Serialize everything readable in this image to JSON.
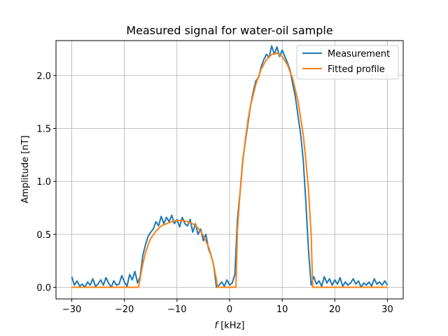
{
  "chart_data": {
    "type": "line",
    "title": "Measured signal for water-oil sample",
    "xlabel_italic": "f",
    "xlabel_rest": " [kHz]",
    "ylabel": "Amplitude [nT]",
    "xlim": [
      -33,
      33
    ],
    "ylim": [
      -0.11,
      2.33
    ],
    "xticks": [
      -30,
      -20,
      -10,
      0,
      10,
      20,
      30
    ],
    "xtick_labels": [
      "−30",
      "−20",
      "−10",
      "0",
      "10",
      "20",
      "30"
    ],
    "yticks": [
      0.0,
      0.5,
      1.0,
      1.5,
      2.0
    ],
    "ytick_labels": [
      "0.0",
      "0.5",
      "1.0",
      "1.5",
      "2.0"
    ],
    "grid": true,
    "legend_position": "top-right",
    "colors": {
      "measurement": "#1f77b4",
      "fitted": "#ff7f0e"
    },
    "series": [
      {
        "name": "Measurement",
        "x": [
          -30,
          -29.5,
          -29,
          -28.5,
          -28,
          -27.5,
          -27,
          -26.5,
          -26,
          -25.5,
          -25,
          -24.5,
          -24,
          -23.5,
          -23,
          -22.5,
          -22,
          -21.5,
          -21,
          -20.5,
          -20,
          -19.5,
          -19,
          -18.5,
          -18,
          -17.5,
          -17,
          -16.5,
          -16,
          -15.5,
          -15,
          -14.5,
          -14,
          -13.5,
          -13,
          -12.5,
          -12,
          -11.5,
          -11,
          -10.5,
          -10,
          -9.5,
          -9,
          -8.5,
          -8,
          -7.5,
          -7,
          -6.5,
          -6,
          -5.5,
          -5,
          -4.5,
          -4,
          -3.5,
          -3,
          -2.5,
          -2,
          -1.5,
          -1,
          -0.5,
          0,
          0.5,
          1,
          1.5,
          2,
          2.5,
          3,
          3.5,
          4,
          4.5,
          5,
          5.5,
          6,
          6.5,
          7,
          7.5,
          8,
          8.5,
          9,
          9.5,
          10,
          10.5,
          11,
          11.5,
          12,
          12.5,
          13,
          13.5,
          14,
          14.5,
          15,
          15.5,
          16,
          16.5,
          17,
          17.5,
          18,
          18.5,
          19,
          19.5,
          20,
          20.5,
          21,
          21.5,
          22,
          22.5,
          23,
          23.5,
          24,
          24.5,
          25,
          25.5,
          26,
          26.5,
          27,
          27.5,
          28,
          28.5,
          29,
          29.5,
          30
        ],
        "y": [
          0.1,
          0.02,
          0.06,
          0.01,
          0.03,
          0.0,
          0.05,
          0.02,
          0.08,
          0.01,
          0.03,
          0.07,
          0.02,
          0.09,
          0.04,
          0.0,
          0.06,
          0.02,
          0.03,
          0.11,
          0.05,
          0.01,
          0.12,
          0.07,
          0.15,
          0.04,
          0.1,
          0.3,
          0.4,
          0.48,
          0.52,
          0.55,
          0.62,
          0.58,
          0.67,
          0.6,
          0.66,
          0.62,
          0.68,
          0.6,
          0.64,
          0.57,
          0.66,
          0.6,
          0.58,
          0.64,
          0.52,
          0.6,
          0.5,
          0.55,
          0.44,
          0.5,
          0.36,
          0.3,
          0.2,
          0.0,
          0.02,
          0.05,
          0.01,
          0.07,
          0.02,
          0.04,
          0.12,
          0.65,
          0.9,
          1.2,
          1.38,
          1.55,
          1.72,
          1.85,
          1.95,
          1.98,
          2.08,
          2.15,
          2.2,
          2.17,
          2.28,
          2.2,
          2.27,
          2.18,
          2.24,
          2.18,
          2.12,
          2.05,
          1.92,
          1.8,
          1.62,
          1.45,
          1.2,
          0.8,
          0.35,
          0.02,
          0.1,
          0.03,
          0.06,
          0.01,
          0.1,
          0.04,
          0.08,
          0.02,
          0.07,
          0.03,
          0.09,
          0.01,
          0.05,
          0.02,
          0.04,
          0.08,
          0.03,
          0.06,
          0.0,
          0.04,
          0.02,
          0.05,
          0.01,
          0.08,
          0.03,
          0.05,
          0.02,
          0.06,
          0.02
        ]
      },
      {
        "name": "Fitted profile",
        "x": [
          -30,
          -17.3,
          -17.3,
          -16.5,
          -16,
          -15.5,
          -15,
          -14,
          -13,
          -12,
          -11,
          -10,
          -9,
          -8,
          -7,
          -6,
          -5,
          -4,
          -3.5,
          -3,
          -2.5,
          -2.3,
          -2.3,
          1.2,
          1.2,
          1.5,
          2,
          2.5,
          3,
          3.5,
          4,
          5,
          6,
          7,
          8,
          9,
          10,
          11,
          12,
          13,
          14,
          14.5,
          15,
          15.5,
          15.8,
          15.8,
          30
        ],
        "y": [
          0,
          0,
          0.0,
          0.22,
          0.32,
          0.4,
          0.46,
          0.53,
          0.58,
          0.6,
          0.62,
          0.63,
          0.63,
          0.62,
          0.6,
          0.56,
          0.49,
          0.38,
          0.3,
          0.2,
          0.07,
          0.0,
          0,
          0,
          0.0,
          0.55,
          0.9,
          1.18,
          1.4,
          1.58,
          1.72,
          1.92,
          2.06,
          2.15,
          2.2,
          2.21,
          2.18,
          2.1,
          1.97,
          1.76,
          1.44,
          1.2,
          0.92,
          0.5,
          0.0,
          0,
          0
        ]
      }
    ]
  }
}
